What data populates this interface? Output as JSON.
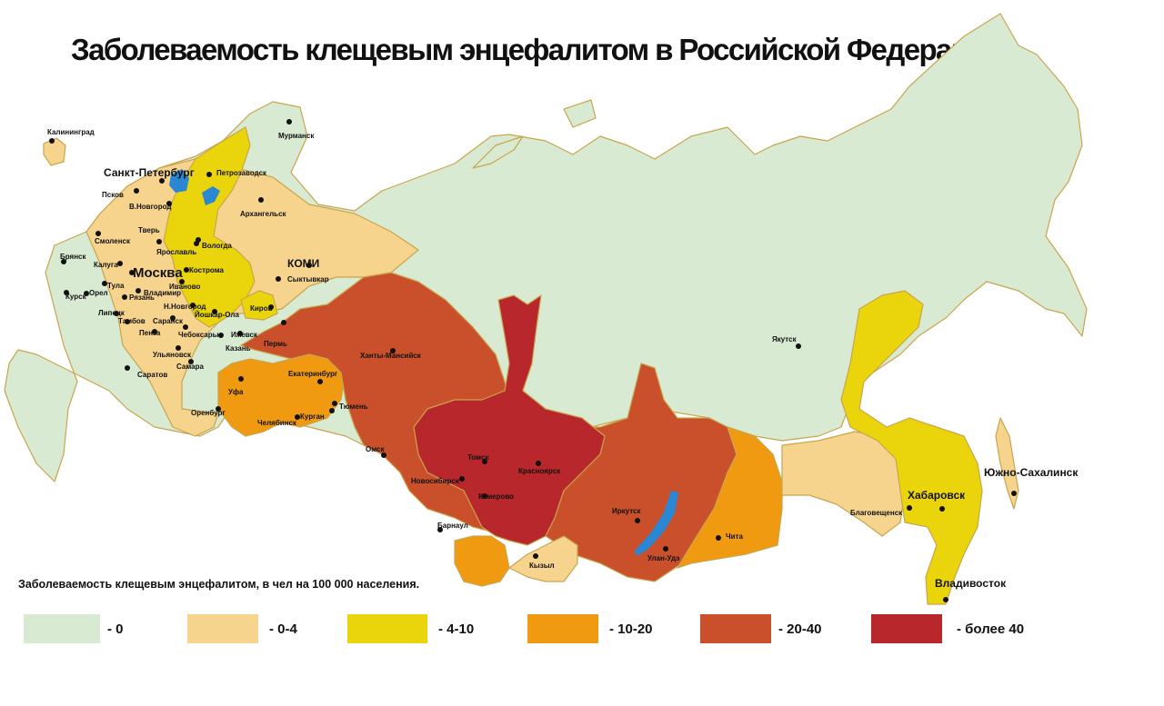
{
  "title": "Заболеваемость клещевым энцефалитом в Российской Федерации",
  "colors": {
    "land_zero": "#d9ead3",
    "low": "#f6d48e",
    "mid": "#ead40c",
    "high": "#f09a12",
    "very_high": "#c9502a",
    "extreme": "#b8272b",
    "water": "#2b86d3",
    "border": "#c9a54c"
  },
  "legend": {
    "caption": "Заболеваемость клещевым энцефалитом, в чел на 100 000 населения.",
    "items": [
      {
        "label": "- 0",
        "color": "#d9ead3"
      },
      {
        "label": "- 0-4",
        "color": "#f6d48e"
      },
      {
        "label": "- 4-10",
        "color": "#ead40c"
      },
      {
        "label": "- 10-20",
        "color": "#f09a12"
      },
      {
        "label": "- 20-40",
        "color": "#c9502a"
      },
      {
        "label": "- более 40",
        "color": "#b8272b"
      }
    ]
  },
  "cities": {
    "kaliningrad": "Калининград",
    "murmansk": "Мурманск",
    "spb": "Санкт-Петербург",
    "petrozavodsk": "Петрозаводск",
    "pskov": "Псков",
    "vnovgorod": "В.Новгород",
    "arkhangelsk": "Архангельск",
    "smolensk": "Смоленск",
    "tver": "Тверь",
    "yaroslavl": "Ярославль",
    "vologda": "Вологда",
    "bryansk": "Брянск",
    "kaluga": "Калуга",
    "moscow": "Москва",
    "kostroma": "Кострома",
    "ivanovo": "Иваново",
    "kursk": "Курск",
    "tula": "Тула",
    "vladimir": "Владимир",
    "ryazan": "Рязань",
    "orel": "Орел",
    "nnovgorod": "Н.Новгород",
    "lipetsk": "Липецк",
    "tambov": "Тамбов",
    "saransk": "Саранск",
    "yoshkarola": "Йошкар-Ола",
    "kirov": "Киров",
    "penza": "Пенза",
    "cheboksary": "Чебоксары",
    "kazan": "Казань",
    "ulyanovsk": "Ульяновск",
    "izhevsk": "Ижевск",
    "perm": "Пермь",
    "saratov": "Саратов",
    "samara": "Самара",
    "ufa": "Уфа",
    "orenburg": "Оренбург",
    "ekaterinburg": "Екатеринбург",
    "chelyabinsk": "Челябинск",
    "kurgan": "Курган",
    "tyumen": "Тюмень",
    "komi": "КОМИ",
    "syktyvkar": "Сыктывкар",
    "khantymansiysk": "Ханты-Мансийск",
    "omsk": "Омск",
    "tomsk": "Томск",
    "novosibirsk": "Новосибирск",
    "kemerovo": "Кемерово",
    "krasnoyarsk": "Красноярск",
    "barnaul": "Барнаул",
    "kyzyl": "Кызыл",
    "irkutsk": "Иркутск",
    "ulanude": "Улан-Удэ",
    "chita": "Чита",
    "yakutsk": "Якутск",
    "blagoveshchensk": "Благовещенск",
    "khabarovsk": "Хабаровск",
    "yuzhnosakhalinsk": "Южно-Сахалинск",
    "vladivostok": "Владивосток"
  }
}
